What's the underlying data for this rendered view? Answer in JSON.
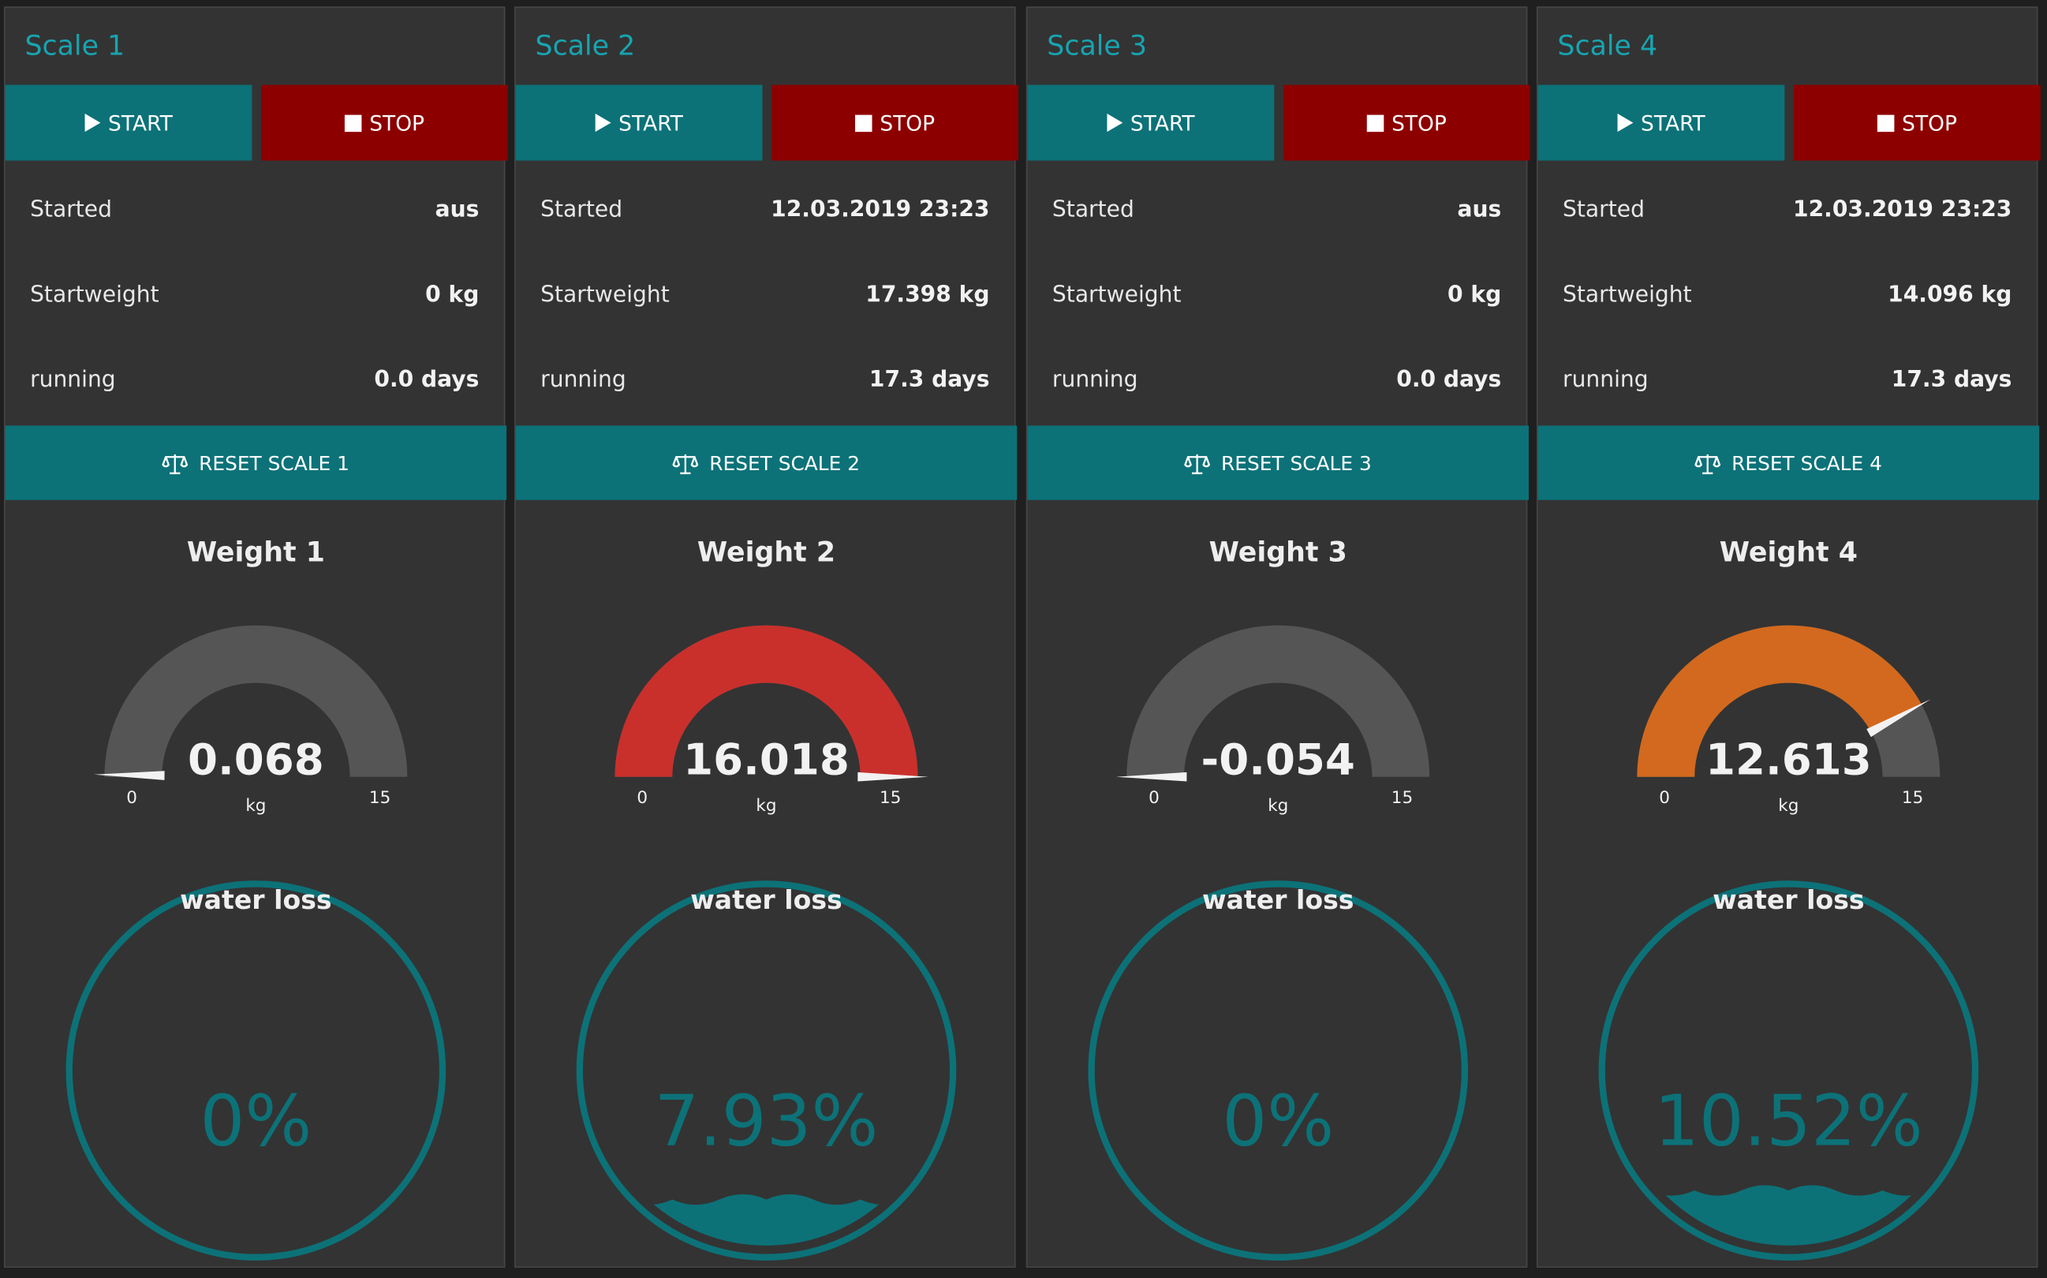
{
  "colors": {
    "accent": "#0c7278",
    "title": "#18a4b0",
    "stop": "#8c0000",
    "gauge_track": "#555555",
    "gauge_red": "#c9302c",
    "gauge_orange": "#d2691e",
    "liquid": "#0c7278"
  },
  "labels": {
    "start": "START",
    "stop": "STOP",
    "started": "Started",
    "startweight": "Startweight",
    "running": "running",
    "water_loss": "water loss",
    "unit": "kg",
    "gauge_min": "0",
    "gauge_max": "15"
  },
  "scales": [
    {
      "title": "Scale 1",
      "started": "aus",
      "startweight": "0 kg",
      "running": "0.0 days",
      "reset_label": "RESET SCALE 1",
      "gauge_title": "Weight 1",
      "weight_text": "0.068",
      "weight": 0.068,
      "gauge_color": "#555555",
      "water_loss_text": "0%",
      "water_loss": 0
    },
    {
      "title": "Scale 2",
      "started": "12.03.2019 23:23",
      "startweight": "17.398 kg",
      "running": "17.3 days",
      "reset_label": "RESET SCALE 2",
      "gauge_title": "Weight 2",
      "weight_text": "16.018",
      "weight": 16.018,
      "gauge_color": "#c9302c",
      "water_loss_text": "7.93%",
      "water_loss": 7.93
    },
    {
      "title": "Scale 3",
      "started": "aus",
      "startweight": "0 kg",
      "running": "0.0 days",
      "reset_label": "RESET SCALE 3",
      "gauge_title": "Weight 3",
      "weight_text": "-0.054",
      "weight": -0.054,
      "gauge_color": "#555555",
      "water_loss_text": "0%",
      "water_loss": 0
    },
    {
      "title": "Scale 4",
      "started": "12.03.2019 23:23",
      "startweight": "14.096 kg",
      "running": "17.3 days",
      "reset_label": "RESET SCALE 4",
      "gauge_title": "Weight 4",
      "weight_text": "12.613",
      "weight": 12.613,
      "gauge_color": "#d2691e",
      "water_loss_text": "10.52%",
      "water_loss": 10.52
    }
  ]
}
